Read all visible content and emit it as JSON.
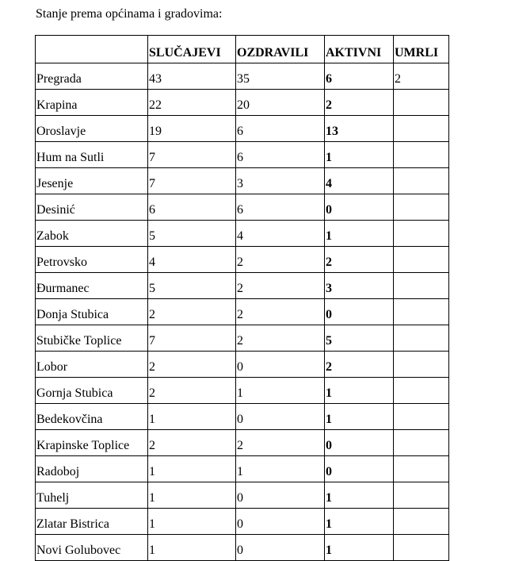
{
  "title": "Stanje prema općinama i gradovima:",
  "table": {
    "headers": [
      "",
      "SLUČAJEVI",
      "OZDRAVILI",
      "AKTIVNI",
      "UMRLI"
    ],
    "rows": [
      [
        "Pregrada",
        "43",
        "35",
        "6",
        "2"
      ],
      [
        "Krapina",
        "22",
        "20",
        "2",
        ""
      ],
      [
        "Oroslavje",
        "19",
        "6",
        "13",
        ""
      ],
      [
        "Hum na Sutli",
        "7",
        "6",
        "1",
        ""
      ],
      [
        "Jesenje",
        "7",
        "3",
        "4",
        ""
      ],
      [
        "Desinić",
        "6",
        "6",
        "0",
        ""
      ],
      [
        "Zabok",
        "5",
        "4",
        "1",
        ""
      ],
      [
        "Petrovsko",
        "4",
        "2",
        "2",
        ""
      ],
      [
        "Đurmanec",
        "5",
        "2",
        "3",
        ""
      ],
      [
        "Donja Stubica",
        "2",
        "2",
        "0",
        ""
      ],
      [
        "Stubičke Toplice",
        "7",
        "2",
        "5",
        ""
      ],
      [
        "Lobor",
        "2",
        "0",
        "2",
        ""
      ],
      [
        "Gornja Stubica",
        "2",
        "1",
        "1",
        ""
      ],
      [
        "Bedekovčina",
        "1",
        "0",
        "1",
        ""
      ],
      [
        "Krapinske Toplice",
        "2",
        "2",
        "0",
        ""
      ],
      [
        "Radoboj",
        "1",
        "1",
        "0",
        ""
      ],
      [
        "Tuhelj",
        "1",
        "0",
        "1",
        ""
      ],
      [
        "Zlatar Bistrica",
        "1",
        "0",
        "1",
        ""
      ],
      [
        "Novi Golubovec",
        "1",
        "0",
        "1",
        ""
      ]
    ]
  }
}
